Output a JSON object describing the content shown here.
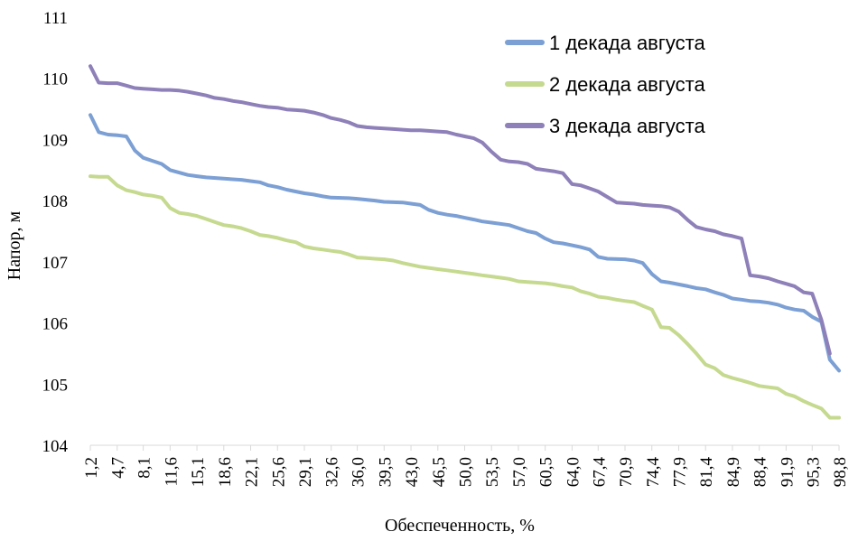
{
  "chart_data": {
    "type": "line",
    "title": "",
    "xlabel": "Обеспеченность, %",
    "ylabel": "Напор, м",
    "ylim": [
      104,
      111
    ],
    "yticks": [
      "104",
      "105",
      "106",
      "107",
      "108",
      "109",
      "110",
      "111"
    ],
    "grid": false,
    "legend_position": "top-right",
    "x_tick_labels": [
      "1,2",
      "4,7",
      "8,1",
      "11,6",
      "15,1",
      "18,6",
      "22,1",
      "25,6",
      "29,1",
      "32,6",
      "36,0",
      "39,5",
      "43,0",
      "46,5",
      "50,0",
      "53,5",
      "57,0",
      "60,5",
      "64,0",
      "67,4",
      "70,9",
      "74,4",
      "77,9",
      "81,4",
      "84,9",
      "88,4",
      "91,9",
      "95,3",
      "98,8"
    ],
    "x_range": [
      1.2,
      98.8
    ],
    "series": [
      {
        "name": "1 декада августа",
        "color": "#7c9fd4",
        "points": [
          [
            1.2,
            109.4
          ],
          [
            2.3,
            109.12
          ],
          [
            3.5,
            109.08
          ],
          [
            4.7,
            109.07
          ],
          [
            5.9,
            109.05
          ],
          [
            7.0,
            108.82
          ],
          [
            8.1,
            108.7
          ],
          [
            9.3,
            108.65
          ],
          [
            10.5,
            108.6
          ],
          [
            11.6,
            108.5
          ],
          [
            13.9,
            108.42
          ],
          [
            15.1,
            108.4
          ],
          [
            16.3,
            108.38
          ],
          [
            18.6,
            108.36
          ],
          [
            20.9,
            108.34
          ],
          [
            22.1,
            108.32
          ],
          [
            23.3,
            108.3
          ],
          [
            24.4,
            108.25
          ],
          [
            25.6,
            108.22
          ],
          [
            26.8,
            108.18
          ],
          [
            29.1,
            108.12
          ],
          [
            30.3,
            108.1
          ],
          [
            31.5,
            108.07
          ],
          [
            32.6,
            108.05
          ],
          [
            34.9,
            108.04
          ],
          [
            36.0,
            108.03
          ],
          [
            38.3,
            108.0
          ],
          [
            39.5,
            107.98
          ],
          [
            41.9,
            107.97
          ],
          [
            43.0,
            107.95
          ],
          [
            44.2,
            107.93
          ],
          [
            45.3,
            107.85
          ],
          [
            46.5,
            107.8
          ],
          [
            47.7,
            107.77
          ],
          [
            48.9,
            107.75
          ],
          [
            50.0,
            107.72
          ],
          [
            51.2,
            107.69
          ],
          [
            52.3,
            107.66
          ],
          [
            53.5,
            107.64
          ],
          [
            55.8,
            107.6
          ],
          [
            57.0,
            107.55
          ],
          [
            58.2,
            107.5
          ],
          [
            59.3,
            107.47
          ],
          [
            60.5,
            107.38
          ],
          [
            61.6,
            107.32
          ],
          [
            62.8,
            107.3
          ],
          [
            64.0,
            107.27
          ],
          [
            65.1,
            107.24
          ],
          [
            66.3,
            107.2
          ],
          [
            67.4,
            107.08
          ],
          [
            68.6,
            107.05
          ],
          [
            70.9,
            107.04
          ],
          [
            72.1,
            107.02
          ],
          [
            73.2,
            106.98
          ],
          [
            74.4,
            106.8
          ],
          [
            75.6,
            106.68
          ],
          [
            76.7,
            106.66
          ],
          [
            77.9,
            106.63
          ],
          [
            79.1,
            106.6
          ],
          [
            80.2,
            106.57
          ],
          [
            81.4,
            106.55
          ],
          [
            82.6,
            106.5
          ],
          [
            83.7,
            106.46
          ],
          [
            84.9,
            106.4
          ],
          [
            86.1,
            106.38
          ],
          [
            87.2,
            106.36
          ],
          [
            88.4,
            106.35
          ],
          [
            89.6,
            106.33
          ],
          [
            90.8,
            106.3
          ],
          [
            91.9,
            106.25
          ],
          [
            93.0,
            106.22
          ],
          [
            94.2,
            106.2
          ],
          [
            95.3,
            106.1
          ],
          [
            96.5,
            106.02
          ],
          [
            97.6,
            105.4
          ],
          [
            98.8,
            105.22
          ]
        ]
      },
      {
        "name": "2 декада августа",
        "color": "#c5d98f",
        "points": [
          [
            1.2,
            108.4
          ],
          [
            2.3,
            108.39
          ],
          [
            3.5,
            108.39
          ],
          [
            4.7,
            108.25
          ],
          [
            5.9,
            108.17
          ],
          [
            7.0,
            108.14
          ],
          [
            8.1,
            108.1
          ],
          [
            9.3,
            108.08
          ],
          [
            10.5,
            108.05
          ],
          [
            11.6,
            107.88
          ],
          [
            12.8,
            107.8
          ],
          [
            13.9,
            107.78
          ],
          [
            15.1,
            107.75
          ],
          [
            16.3,
            107.7
          ],
          [
            17.4,
            107.65
          ],
          [
            18.6,
            107.6
          ],
          [
            19.8,
            107.58
          ],
          [
            20.9,
            107.55
          ],
          [
            22.1,
            107.5
          ],
          [
            23.3,
            107.44
          ],
          [
            24.4,
            107.42
          ],
          [
            25.6,
            107.39
          ],
          [
            26.8,
            107.35
          ],
          [
            28.0,
            107.32
          ],
          [
            29.1,
            107.25
          ],
          [
            30.3,
            107.22
          ],
          [
            31.5,
            107.2
          ],
          [
            32.6,
            107.18
          ],
          [
            33.8,
            107.16
          ],
          [
            34.9,
            107.12
          ],
          [
            36.0,
            107.07
          ],
          [
            37.2,
            107.06
          ],
          [
            38.3,
            107.05
          ],
          [
            39.5,
            107.04
          ],
          [
            40.7,
            107.02
          ],
          [
            41.9,
            106.98
          ],
          [
            43.0,
            106.95
          ],
          [
            44.2,
            106.92
          ],
          [
            45.3,
            106.9
          ],
          [
            46.5,
            106.88
          ],
          [
            47.7,
            106.86
          ],
          [
            48.9,
            106.84
          ],
          [
            50.0,
            106.82
          ],
          [
            51.2,
            106.8
          ],
          [
            52.3,
            106.78
          ],
          [
            53.5,
            106.76
          ],
          [
            54.7,
            106.74
          ],
          [
            55.8,
            106.72
          ],
          [
            57.0,
            106.68
          ],
          [
            58.2,
            106.67
          ],
          [
            59.3,
            106.66
          ],
          [
            60.5,
            106.65
          ],
          [
            61.6,
            106.63
          ],
          [
            62.8,
            106.6
          ],
          [
            64.0,
            106.58
          ],
          [
            65.1,
            106.52
          ],
          [
            66.3,
            106.48
          ],
          [
            67.4,
            106.43
          ],
          [
            68.6,
            106.41
          ],
          [
            69.8,
            106.38
          ],
          [
            70.9,
            106.36
          ],
          [
            72.1,
            106.34
          ],
          [
            73.2,
            106.28
          ],
          [
            74.4,
            106.22
          ],
          [
            75.6,
            105.93
          ],
          [
            76.7,
            105.92
          ],
          [
            77.9,
            105.8
          ],
          [
            79.1,
            105.65
          ],
          [
            80.2,
            105.5
          ],
          [
            81.4,
            105.32
          ],
          [
            82.6,
            105.26
          ],
          [
            83.7,
            105.15
          ],
          [
            84.9,
            105.1
          ],
          [
            86.1,
            105.06
          ],
          [
            87.2,
            105.02
          ],
          [
            88.4,
            104.97
          ],
          [
            89.6,
            104.95
          ],
          [
            90.8,
            104.93
          ],
          [
            91.9,
            104.84
          ],
          [
            93.0,
            104.8
          ],
          [
            94.2,
            104.72
          ],
          [
            95.3,
            104.66
          ],
          [
            96.5,
            104.6
          ],
          [
            97.6,
            104.45
          ],
          [
            98.8,
            104.45
          ]
        ]
      },
      {
        "name": "3 декада августа",
        "color": "#8e80b8",
        "points": [
          [
            1.2,
            110.2
          ],
          [
            2.3,
            109.93
          ],
          [
            3.5,
            109.92
          ],
          [
            4.7,
            109.92
          ],
          [
            5.9,
            109.88
          ],
          [
            7.0,
            109.84
          ],
          [
            8.1,
            109.83
          ],
          [
            9.3,
            109.82
          ],
          [
            10.5,
            109.81
          ],
          [
            11.6,
            109.81
          ],
          [
            12.8,
            109.8
          ],
          [
            13.9,
            109.78
          ],
          [
            15.1,
            109.75
          ],
          [
            16.3,
            109.72
          ],
          [
            17.4,
            109.68
          ],
          [
            18.6,
            109.66
          ],
          [
            19.8,
            109.63
          ],
          [
            20.9,
            109.61
          ],
          [
            22.1,
            109.58
          ],
          [
            23.3,
            109.55
          ],
          [
            24.4,
            109.53
          ],
          [
            25.6,
            109.52
          ],
          [
            26.8,
            109.49
          ],
          [
            28.0,
            109.48
          ],
          [
            29.1,
            109.47
          ],
          [
            30.3,
            109.44
          ],
          [
            31.5,
            109.4
          ],
          [
            32.6,
            109.35
          ],
          [
            33.8,
            109.32
          ],
          [
            34.9,
            109.28
          ],
          [
            36.0,
            109.22
          ],
          [
            37.2,
            109.2
          ],
          [
            38.3,
            109.19
          ],
          [
            39.5,
            109.18
          ],
          [
            40.7,
            109.17
          ],
          [
            41.9,
            109.16
          ],
          [
            43.0,
            109.15
          ],
          [
            44.2,
            109.15
          ],
          [
            45.3,
            109.14
          ],
          [
            46.5,
            109.13
          ],
          [
            47.7,
            109.12
          ],
          [
            48.9,
            109.08
          ],
          [
            50.0,
            109.05
          ],
          [
            51.2,
            109.02
          ],
          [
            52.3,
            108.95
          ],
          [
            53.5,
            108.8
          ],
          [
            54.7,
            108.67
          ],
          [
            55.8,
            108.64
          ],
          [
            57.0,
            108.63
          ],
          [
            58.2,
            108.6
          ],
          [
            59.3,
            108.52
          ],
          [
            60.5,
            108.5
          ],
          [
            61.6,
            108.48
          ],
          [
            62.8,
            108.45
          ],
          [
            64.0,
            108.27
          ],
          [
            65.1,
            108.25
          ],
          [
            66.3,
            108.2
          ],
          [
            67.4,
            108.15
          ],
          [
            68.6,
            108.06
          ],
          [
            69.8,
            107.97
          ],
          [
            70.9,
            107.96
          ],
          [
            72.1,
            107.95
          ],
          [
            73.2,
            107.93
          ],
          [
            74.4,
            107.92
          ],
          [
            75.6,
            107.91
          ],
          [
            76.7,
            107.89
          ],
          [
            77.9,
            107.82
          ],
          [
            79.1,
            107.68
          ],
          [
            80.2,
            107.57
          ],
          [
            81.4,
            107.53
          ],
          [
            82.6,
            107.5
          ],
          [
            83.7,
            107.45
          ],
          [
            84.9,
            107.42
          ],
          [
            86.1,
            107.38
          ],
          [
            87.2,
            106.78
          ],
          [
            88.4,
            106.76
          ],
          [
            89.6,
            106.73
          ],
          [
            90.8,
            106.68
          ],
          [
            91.9,
            106.64
          ],
          [
            93.0,
            106.6
          ],
          [
            94.2,
            106.5
          ],
          [
            95.3,
            106.48
          ],
          [
            96.5,
            106.05
          ],
          [
            97.6,
            105.5
          ]
        ]
      }
    ]
  }
}
